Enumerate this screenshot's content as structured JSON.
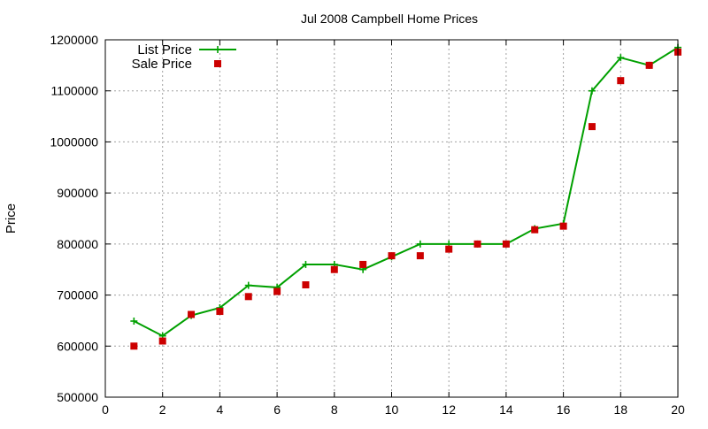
{
  "chart_data": {
    "type": "line",
    "title": "Jul 2008 Campbell Home Prices",
    "xlabel": "",
    "ylabel": "Price",
    "xlim": [
      0,
      20
    ],
    "ylim": [
      500000,
      1200000
    ],
    "x_ticks": [
      0,
      2,
      4,
      6,
      8,
      10,
      12,
      14,
      16,
      18,
      20
    ],
    "y_ticks": [
      500000,
      600000,
      700000,
      800000,
      900000,
      1000000,
      1100000,
      1200000
    ],
    "grid": true,
    "legend_position": "top-left",
    "series": [
      {
        "name": "List Price",
        "kind": "line-with-plus-markers",
        "color": "#00a000",
        "x": [
          1,
          2,
          3,
          4,
          5,
          6,
          7,
          8,
          9,
          10,
          11,
          12,
          13,
          14,
          15,
          16,
          17,
          18,
          19,
          20
        ],
        "values": [
          649000,
          620000,
          660000,
          675000,
          719000,
          715000,
          760000,
          760000,
          750000,
          775000,
          800000,
          800000,
          800000,
          800000,
          830000,
          840000,
          1100000,
          1165000,
          1150000,
          1185000
        ]
      },
      {
        "name": "Sale Price",
        "kind": "square-markers",
        "color": "#cc0000",
        "x": [
          1,
          2,
          3,
          4,
          5,
          6,
          7,
          8,
          9,
          10,
          11,
          12,
          13,
          14,
          15,
          16,
          17,
          18,
          19,
          20
        ],
        "values": [
          600000,
          610000,
          662000,
          668000,
          697000,
          707000,
          720000,
          750000,
          760000,
          777000,
          777000,
          790000,
          800000,
          800000,
          828000,
          835000,
          1030000,
          1120000,
          1150000,
          1176000
        ]
      }
    ]
  }
}
